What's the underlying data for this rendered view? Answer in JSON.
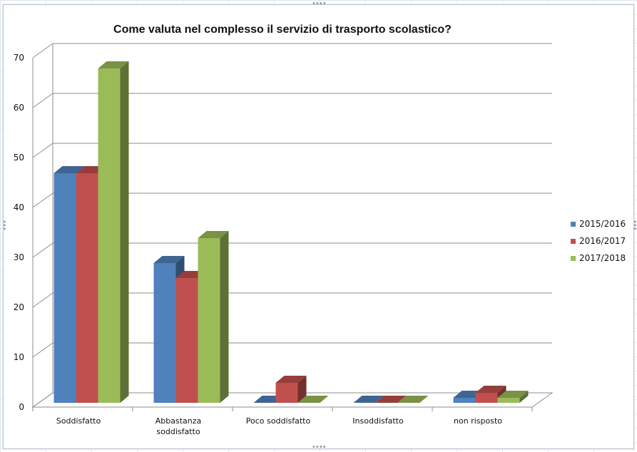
{
  "chart_data": {
    "type": "bar",
    "title": "Come valuta nel complesso il servizio di trasporto scolastico?",
    "categories": [
      "Soddisfatto",
      "Abbastanza soddisfatto",
      "Poco soddisfatto",
      "Insoddisfatto",
      "non risposto"
    ],
    "series": [
      {
        "name": "2015/2016",
        "values": [
          46,
          28,
          0,
          0,
          1
        ],
        "color": "#4f81bd"
      },
      {
        "name": "2016/2017",
        "values": [
          46,
          25,
          4,
          0,
          2
        ],
        "color": "#c0504d"
      },
      {
        "name": "2017/2018",
        "values": [
          67,
          33,
          0,
          0,
          1
        ],
        "color": "#9bbb59"
      }
    ],
    "ylim": [
      0,
      70
    ],
    "yticks": [
      0,
      10,
      20,
      30,
      40,
      50,
      60,
      70
    ],
    "grid": true,
    "legend": "right",
    "style": "3d-column"
  }
}
